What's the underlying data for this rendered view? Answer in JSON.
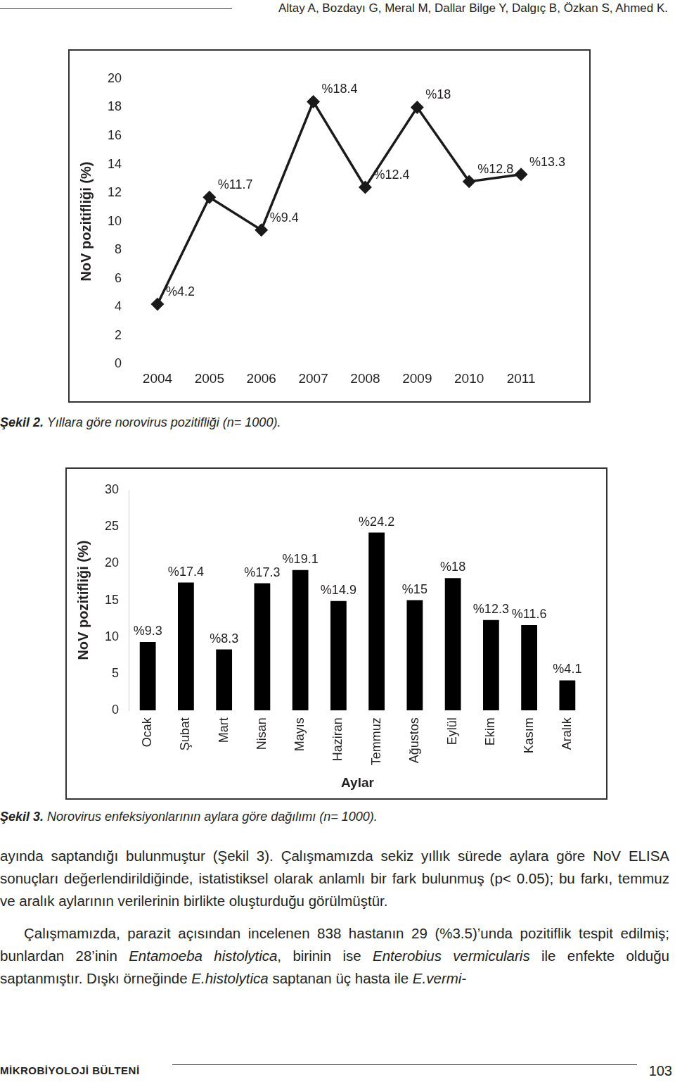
{
  "header": {
    "authors": "Altay A, Bozdayı G, Meral M, Dallar Bilge Y, Dalgıç B, Özkan S, Ahmed K."
  },
  "chart_data": [
    {
      "type": "line",
      "y_label": "NoV pozitifliği (%)",
      "categories": [
        "2004",
        "2005",
        "2006",
        "2007",
        "2008",
        "2009",
        "2010",
        "2011"
      ],
      "values": [
        4.2,
        11.7,
        9.4,
        18.4,
        12.4,
        18,
        12.8,
        13.3
      ],
      "value_labels": [
        "%4.2",
        "%11.7",
        "%9.4",
        "%18.4",
        "%12.4",
        "%18",
        "%12.8",
        "%13.3"
      ],
      "data_labels": true,
      "color": "#1a1a1a",
      "marker": "diamond",
      "line_style": "solid",
      "ylim": [
        0,
        20
      ],
      "yticks": [
        0,
        2,
        4,
        6,
        8,
        10,
        12,
        14,
        16,
        18,
        20
      ],
      "grid": false
    },
    {
      "type": "bar",
      "y_label": "NoV pozitifliği (%)",
      "x_label": "Aylar",
      "categories": [
        "Ocak",
        "Şubat",
        "Mart",
        "Nisan",
        "Mayıs",
        "Haziran",
        "Temmuz",
        "Ağustos",
        "Eylül",
        "Ekim",
        "Kasım",
        "Aralık"
      ],
      "values": [
        9.3,
        17.4,
        8.3,
        17.3,
        19.1,
        14.9,
        24.2,
        15,
        18,
        12.3,
        11.6,
        4.1
      ],
      "value_labels": [
        "%9.3",
        "%17.4",
        "%8.3",
        "%17.3",
        "%19.1",
        "%14.9",
        "%24.2",
        "%15",
        "%18",
        "%12.3",
        "%11.6",
        "%4.1"
      ],
      "data_labels": true,
      "color": "#000000",
      "ylim": [
        0,
        30
      ],
      "yticks": [
        0,
        5,
        10,
        15,
        20,
        25,
        30
      ],
      "grid": false
    }
  ],
  "captions": [
    {
      "label": "Şekil 2.",
      "text": "Yıllara göre norovirus pozitifliği (n= 1000)."
    },
    {
      "label": "Şekil 3.",
      "text": "Norovirus enfeksiyonlarının aylara göre dağılımı (n= 1000)."
    }
  ],
  "paragraphs": [
    [
      {
        "text": "ayında saptandığı bulunmuştur (Şekil 3). Çalışmamızda sekiz yıllık sürede aylara göre NoV ELISA sonuçları değerlendirildiğinde, istatistiksel olarak anlamlı bir fark bulunmuş (p< 0.05); bu farkı, temmuz ve aralık aylarının verilerinin birlikte oluşturduğu görülmüştür.",
        "italic": false
      }
    ],
    [
      {
        "text": "Çalışmamızda, parazit açısından incelenen 838 hastanın 29 (%3.5)’unda pozitiflik tespit edilmiş; bunlardan 28’inin ",
        "italic": false
      },
      {
        "text": "Entamoeba histolytica",
        "italic": true
      },
      {
        "text": ", birinin ise ",
        "italic": false
      },
      {
        "text": "Enterobius vermicularis",
        "italic": true
      },
      {
        "text": " ile enfekte olduğu saptanmıştır. Dışkı örneğinde ",
        "italic": false
      },
      {
        "text": "E.histolytica",
        "italic": true
      },
      {
        "text": " saptanan üç hasta ile ",
        "italic": false
      },
      {
        "text": "E.vermi-",
        "italic": true
      }
    ]
  ],
  "footer": {
    "journal": "MİKROBİYOLOJİ BÜLTENİ",
    "page": "103"
  }
}
